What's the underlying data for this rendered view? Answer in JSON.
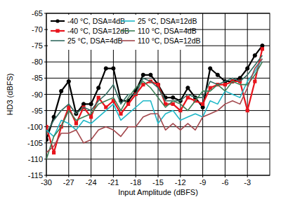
{
  "chart_data": {
    "type": "line",
    "x_label": "Input Amplitude (dBFS)",
    "y_label": "HD3 (dBFS)",
    "x": [
      -30,
      -29,
      -28,
      -27,
      -26,
      -25,
      -24,
      -23,
      -22,
      -21,
      -20,
      -19,
      -18,
      -17,
      -16,
      -15,
      -14,
      -13,
      -12,
      -11,
      -10,
      -9,
      -8,
      -7,
      -6,
      -5,
      -4,
      -3,
      -2,
      -1
    ],
    "xlim": [
      -30,
      0
    ],
    "xticks": [
      -30,
      -27,
      -24,
      -21,
      -18,
      -15,
      -12,
      -9,
      -6,
      -3
    ],
    "ylim": [
      -115,
      -65
    ],
    "yticks": [
      -115,
      -110,
      -105,
      -100,
      -95,
      -90,
      -85,
      -80,
      -75,
      -70,
      -65
    ],
    "grid": true,
    "legend": "upper left",
    "series": [
      {
        "name": "-40 °C, DSA=4dB",
        "color": "#000000",
        "marker": "circle",
        "values": [
          -104,
          -97,
          -89,
          -86,
          -96,
          -93,
          -93,
          -88,
          -82,
          -82,
          -92,
          -92,
          -89,
          -84,
          -84,
          -87,
          -91,
          -91,
          -92,
          -88,
          -91,
          -94,
          -82,
          -84,
          -86,
          -86,
          -85,
          -82,
          -78,
          -75
        ]
      },
      {
        "name": "-40 °C, DSA=12dB",
        "color": "#e8141c",
        "marker": "square",
        "values": [
          -100,
          -108,
          -100,
          -94,
          -99,
          -94,
          -97,
          -91,
          -94,
          -92,
          -96,
          -93,
          -90,
          -87,
          -86,
          -87,
          -93,
          -93,
          -95,
          -91,
          -92,
          -93,
          -88,
          -87,
          -87,
          -86,
          -86,
          -95,
          -86,
          -76
        ]
      },
      {
        "name": "25 °C, DSA=4dB",
        "color": "#336a60",
        "marker": "none",
        "values": [
          -102,
          -98,
          -95,
          -93,
          -96,
          -94,
          -95,
          -92,
          -90,
          -87,
          -93,
          -90,
          -90,
          -85,
          -86,
          -88,
          -92,
          -92,
          -92,
          -90,
          -91,
          -91,
          -86,
          -87,
          -86,
          -85,
          -86,
          -84,
          -81,
          -78
        ]
      },
      {
        "name": "25 °C, DSA=12dB",
        "color": "#1fb8c8",
        "marker": "none",
        "values": [
          -101,
          -103,
          -98,
          -99,
          -101,
          -98,
          -99,
          -97,
          -95,
          -93,
          -98,
          -96,
          -94,
          -92,
          -92,
          -99,
          -96,
          -95,
          -98,
          -97,
          -96,
          -97,
          -92,
          -93,
          -89,
          -90,
          -91,
          -86,
          -83,
          -79
        ]
      },
      {
        "name": "110 °C, DSA=4dB",
        "color": "#3d7f55",
        "marker": "none",
        "values": [
          -110,
          -103,
          -100,
          -95,
          -98,
          -97,
          -96,
          -93,
          -92,
          -91,
          -95,
          -91,
          -88,
          -86,
          -88,
          -91,
          -94,
          -92,
          -93,
          -95,
          -92,
          -89,
          -89,
          -87,
          -89,
          -86,
          -87,
          -87,
          -84,
          -80
        ]
      },
      {
        "name": "110 °C, DSA=12dB",
        "color": "#a3474c",
        "marker": "none",
        "values": [
          -108,
          -106,
          -102,
          -102,
          -101,
          -105,
          -104,
          -101,
          -100,
          -101,
          -103,
          -100,
          -100,
          -97,
          -96,
          -96,
          -101,
          -99,
          -101,
          -99,
          -101,
          -97,
          -96,
          -95,
          -93,
          -92,
          -93,
          -88,
          -82,
          -79
        ]
      }
    ]
  }
}
